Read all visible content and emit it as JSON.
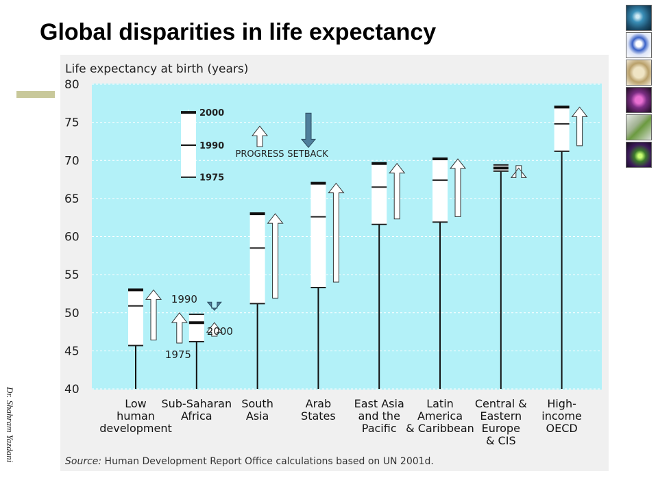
{
  "slide": {
    "title": "Global disparities in life expectancy",
    "author": "Dr. Shahram Yazdani"
  },
  "thumbnails": [
    "globe-thumbnail",
    "molecule-thumbnail",
    "pills-thumbnail",
    "brain-scan-thumbnail",
    "plant-thumbnail",
    "cell-thumbnail"
  ],
  "colors": {
    "plot_bg": "#b3f1f8",
    "panel_bg": "#f0f0f0",
    "grid": "#ffffff",
    "setback_arrow": "#4f7f9c"
  },
  "chart_data": {
    "type": "range-bar",
    "ylabel": "Life expectancy at birth (years)",
    "ylim": [
      40,
      80
    ],
    "yticks": [
      40,
      45,
      50,
      55,
      60,
      65,
      70,
      75,
      80
    ],
    "grid": true,
    "categories": [
      [
        "Low",
        "human",
        "development"
      ],
      [
        "Sub-Saharan",
        "Africa"
      ],
      [
        "South",
        "Asia"
      ],
      [
        "Arab",
        "States"
      ],
      [
        "East Asia",
        "and the",
        "Pacific"
      ],
      [
        "Latin",
        "America",
        "& Caribbean"
      ],
      [
        "Central &",
        "Eastern",
        "Europe",
        "& CIS"
      ],
      [
        "High-",
        "income",
        "OECD"
      ]
    ],
    "series": [
      {
        "name": "1975",
        "values": [
          45.7,
          46.2,
          51.2,
          53.3,
          61.6,
          61.9,
          68.6,
          71.2
        ]
      },
      {
        "name": "1990",
        "values": [
          50.9,
          49.8,
          58.5,
          62.6,
          66.5,
          67.4,
          69.4,
          74.8
        ]
      },
      {
        "name": "2000",
        "values": [
          53.0,
          48.7,
          63.0,
          67.0,
          69.6,
          70.2,
          69.0,
          77.0
        ]
      }
    ],
    "legend": {
      "years": [
        "2000",
        "1990",
        "1975"
      ],
      "years_values": [
        76.3,
        72.0,
        67.8
      ],
      "progress": "PROGRESS",
      "setback": "SETBACK",
      "ssa_labels": [
        "1990",
        "2000",
        "1975"
      ],
      "mark": "!"
    },
    "source_label": "Source:",
    "source_text": " Human Development Report Office calculations based on UN 2001d."
  }
}
